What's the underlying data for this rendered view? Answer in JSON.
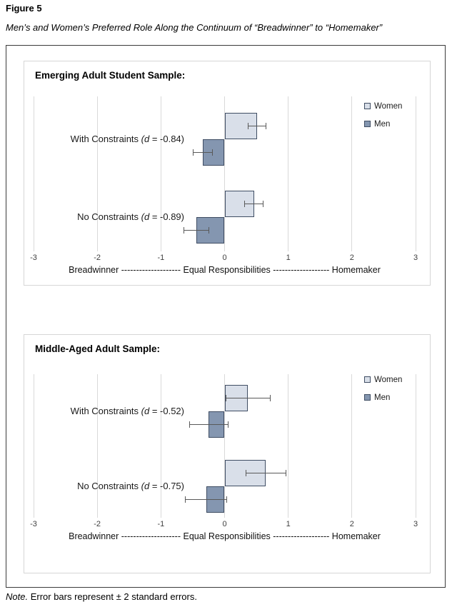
{
  "page": {
    "figure_label": "Figure 5",
    "figure_title": "Men’s and Women’s Preferred Role Along the Continuum of “Breadwinner” to “Homemaker”",
    "note_lead": "Note.",
    "note_rest": " Error bars represent ± 2 standard errors."
  },
  "colors": {
    "women_fill": "#d9dfe9",
    "men_fill": "#8496b0",
    "bar_border": "#3f4d63",
    "error_bar": "#595959",
    "gridline": "#d9d9d9",
    "panel_border": "#d6d6d6",
    "frame_border": "#3b3b3b"
  },
  "chart_data": [
    {
      "type": "bar",
      "orientation": "horizontal",
      "title": "Emerging Adult Student Sample:",
      "xlim": [
        -3,
        3
      ],
      "xticks": [
        -3,
        -2,
        -1,
        0,
        1,
        2,
        3
      ],
      "xlabel": "Breadwinner -------------------- Equal Responsibilities ------------------- Homemaker",
      "grid": true,
      "legend_position": "top-right",
      "legend": [
        "Women",
        "Men"
      ],
      "error_bar_meaning": "± 2 standard errors",
      "categories": [
        {
          "label": "With Constraints (d = -0.84)",
          "label_pre": "With Constraints ",
          "label_italic": "(d",
          "label_post": " = -0.84)",
          "effect_size_d": -0.84
        },
        {
          "label": "No Constraints (d = -0.89)",
          "label_pre": "No Constraints ",
          "label_italic": "(d",
          "label_post": " = -0.89)",
          "effect_size_d": -0.89
        }
      ],
      "series": [
        {
          "name": "Women",
          "values": [
            0.51,
            0.46
          ],
          "error_plus_minus": [
            0.15,
            0.15
          ]
        },
        {
          "name": "Men",
          "values": [
            -0.34,
            -0.44
          ],
          "error_plus_minus": [
            0.16,
            0.2
          ]
        }
      ]
    },
    {
      "type": "bar",
      "orientation": "horizontal",
      "title": "Middle-Aged Adult Sample:",
      "xlim": [
        -3,
        3
      ],
      "xticks": [
        -3,
        -2,
        -1,
        0,
        1,
        2,
        3
      ],
      "xlabel": "Breadwinner -------------------- Equal Responsibilities ------------------- Homemaker",
      "grid": true,
      "legend_position": "top-right",
      "legend": [
        "Women",
        "Men"
      ],
      "error_bar_meaning": "± 2 standard errors",
      "categories": [
        {
          "label": "With Constraints (d = -0.52)",
          "label_pre": "With Constraints ",
          "label_italic": "(d",
          "label_post": " = -0.52)",
          "effect_size_d": -0.52
        },
        {
          "label": "No Constraints (d = -0.75)",
          "label_pre": "No Constraints ",
          "label_italic": "(d",
          "label_post": " = -0.75)",
          "effect_size_d": -0.75
        }
      ],
      "series": [
        {
          "name": "Women",
          "values": [
            0.37,
            0.65
          ],
          "error_plus_minus": [
            0.35,
            0.32
          ]
        },
        {
          "name": "Men",
          "values": [
            -0.25,
            -0.29
          ],
          "error_plus_minus": [
            0.31,
            0.33
          ]
        }
      ]
    }
  ]
}
